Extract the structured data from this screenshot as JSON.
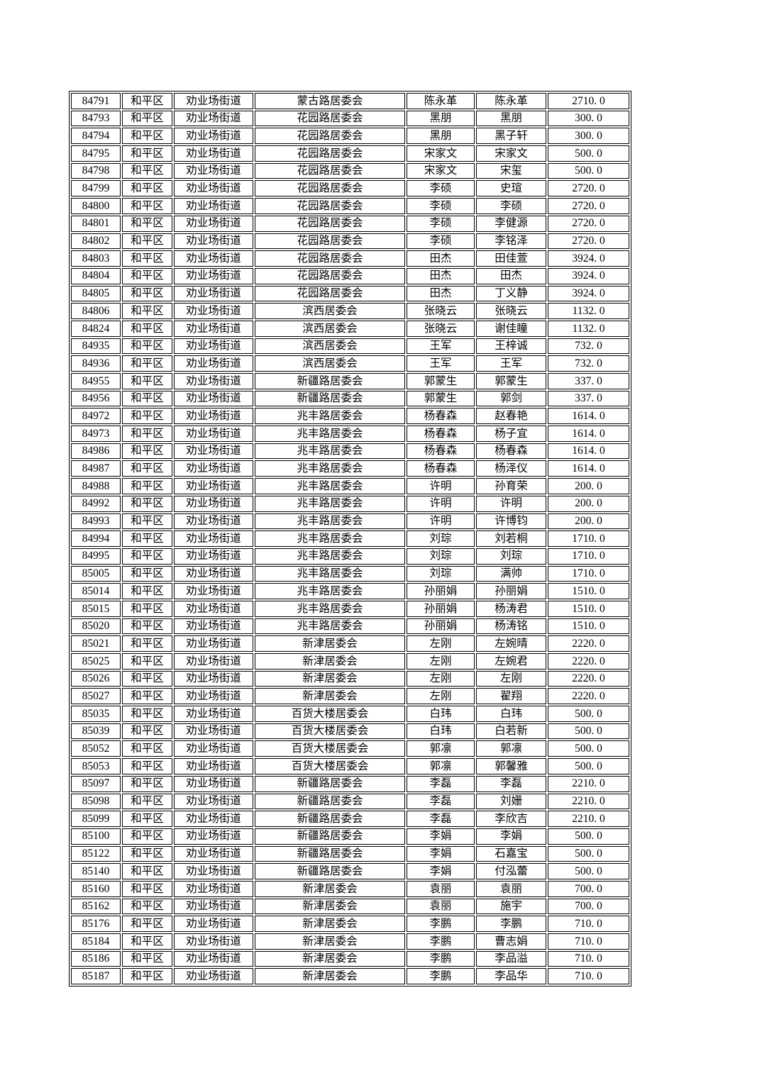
{
  "colors": {
    "background": "#ffffff",
    "table_border": "#000000",
    "text": "#000000"
  },
  "table": {
    "rows": [
      [
        "84791",
        "和平区",
        "劝业场街道",
        "蒙古路居委会",
        "陈永革",
        "陈永革",
        "2710. 0"
      ],
      [
        "84793",
        "和平区",
        "劝业场街道",
        "花园路居委会",
        "黑朋",
        "黑朋",
        "300. 0"
      ],
      [
        "84794",
        "和平区",
        "劝业场街道",
        "花园路居委会",
        "黑朋",
        "黑子轩",
        "300. 0"
      ],
      [
        "84795",
        "和平区",
        "劝业场街道",
        "花园路居委会",
        "宋家文",
        "宋家文",
        "500. 0"
      ],
      [
        "84798",
        "和平区",
        "劝业场街道",
        "花园路居委会",
        "宋家文",
        "宋玺",
        "500. 0"
      ],
      [
        "84799",
        "和平区",
        "劝业场街道",
        "花园路居委会",
        "李硕",
        "史瑄",
        "2720. 0"
      ],
      [
        "84800",
        "和平区",
        "劝业场街道",
        "花园路居委会",
        "李硕",
        "李硕",
        "2720. 0"
      ],
      [
        "84801",
        "和平区",
        "劝业场街道",
        "花园路居委会",
        "李硕",
        "李健源",
        "2720. 0"
      ],
      [
        "84802",
        "和平区",
        "劝业场街道",
        "花园路居委会",
        "李硕",
        "李铭泽",
        "2720. 0"
      ],
      [
        "84803",
        "和平区",
        "劝业场街道",
        "花园路居委会",
        "田杰",
        "田佳萱",
        "3924. 0"
      ],
      [
        "84804",
        "和平区",
        "劝业场街道",
        "花园路居委会",
        "田杰",
        "田杰",
        "3924. 0"
      ],
      [
        "84805",
        "和平区",
        "劝业场街道",
        "花园路居委会",
        "田杰",
        "丁义静",
        "3924. 0"
      ],
      [
        "84806",
        "和平区",
        "劝业场街道",
        "滨西居委会",
        "张晓云",
        "张晓云",
        "1132. 0"
      ],
      [
        "84824",
        "和平区",
        "劝业场街道",
        "滨西居委会",
        "张晓云",
        "谢佳瞳",
        "1132. 0"
      ],
      [
        "84935",
        "和平区",
        "劝业场街道",
        "滨西居委会",
        "王军",
        "王梓诚",
        "732. 0"
      ],
      [
        "84936",
        "和平区",
        "劝业场街道",
        "滨西居委会",
        "王军",
        "王军",
        "732. 0"
      ],
      [
        "84955",
        "和平区",
        "劝业场街道",
        "新疆路居委会",
        "郭蒙生",
        "郭蒙生",
        "337. 0"
      ],
      [
        "84956",
        "和平区",
        "劝业场街道",
        "新疆路居委会",
        "郭蒙生",
        "郭剑",
        "337. 0"
      ],
      [
        "84972",
        "和平区",
        "劝业场街道",
        "兆丰路居委会",
        "杨春森",
        "赵春艳",
        "1614. 0"
      ],
      [
        "84973",
        "和平区",
        "劝业场街道",
        "兆丰路居委会",
        "杨春森",
        "杨子宜",
        "1614. 0"
      ],
      [
        "84986",
        "和平区",
        "劝业场街道",
        "兆丰路居委会",
        "杨春森",
        "杨春森",
        "1614. 0"
      ],
      [
        "84987",
        "和平区",
        "劝业场街道",
        "兆丰路居委会",
        "杨春森",
        "杨泽仪",
        "1614. 0"
      ],
      [
        "84988",
        "和平区",
        "劝业场街道",
        "兆丰路居委会",
        "许明",
        "孙育荣",
        "200. 0"
      ],
      [
        "84992",
        "和平区",
        "劝业场街道",
        "兆丰路居委会",
        "许明",
        "许明",
        "200. 0"
      ],
      [
        "84993",
        "和平区",
        "劝业场街道",
        "兆丰路居委会",
        "许明",
        "许博钧",
        "200. 0"
      ],
      [
        "84994",
        "和平区",
        "劝业场街道",
        "兆丰路居委会",
        "刘琮",
        "刘若桐",
        "1710. 0"
      ],
      [
        "84995",
        "和平区",
        "劝业场街道",
        "兆丰路居委会",
        "刘琮",
        "刘琮",
        "1710. 0"
      ],
      [
        "85005",
        "和平区",
        "劝业场街道",
        "兆丰路居委会",
        "刘琮",
        "满帅",
        "1710. 0"
      ],
      [
        "85014",
        "和平区",
        "劝业场街道",
        "兆丰路居委会",
        "孙丽娟",
        "孙丽娟",
        "1510. 0"
      ],
      [
        "85015",
        "和平区",
        "劝业场街道",
        "兆丰路居委会",
        "孙丽娟",
        "杨涛君",
        "1510. 0"
      ],
      [
        "85020",
        "和平区",
        "劝业场街道",
        "兆丰路居委会",
        "孙丽娟",
        "杨涛铭",
        "1510. 0"
      ],
      [
        "85021",
        "和平区",
        "劝业场街道",
        "新津居委会",
        "左刚",
        "左婉晴",
        "2220. 0"
      ],
      [
        "85025",
        "和平区",
        "劝业场街道",
        "新津居委会",
        "左刚",
        "左婉君",
        "2220. 0"
      ],
      [
        "85026",
        "和平区",
        "劝业场街道",
        "新津居委会",
        "左刚",
        "左刚",
        "2220. 0"
      ],
      [
        "85027",
        "和平区",
        "劝业场街道",
        "新津居委会",
        "左刚",
        "翟翔",
        "2220. 0"
      ],
      [
        "85035",
        "和平区",
        "劝业场街道",
        "百货大楼居委会",
        "白玮",
        "白玮",
        "500. 0"
      ],
      [
        "85039",
        "和平区",
        "劝业场街道",
        "百货大楼居委会",
        "白玮",
        "白若新",
        "500. 0"
      ],
      [
        "85052",
        "和平区",
        "劝业场街道",
        "百货大楼居委会",
        "郭凛",
        "郭凛",
        "500. 0"
      ],
      [
        "85053",
        "和平区",
        "劝业场街道",
        "百货大楼居委会",
        "郭凛",
        "郭馨雅",
        "500. 0"
      ],
      [
        "85097",
        "和平区",
        "劝业场街道",
        "新疆路居委会",
        "李磊",
        "李磊",
        "2210. 0"
      ],
      [
        "85098",
        "和平区",
        "劝业场街道",
        "新疆路居委会",
        "李磊",
        "刘姗",
        "2210. 0"
      ],
      [
        "85099",
        "和平区",
        "劝业场街道",
        "新疆路居委会",
        "李磊",
        "李欣吉",
        "2210. 0"
      ],
      [
        "85100",
        "和平区",
        "劝业场街道",
        "新疆路居委会",
        "李娟",
        "李娟",
        "500. 0"
      ],
      [
        "85122",
        "和平区",
        "劝业场街道",
        "新疆路居委会",
        "李娟",
        "石嘉宝",
        "500. 0"
      ],
      [
        "85140",
        "和平区",
        "劝业场街道",
        "新疆路居委会",
        "李娟",
        "付泓蕾",
        "500. 0"
      ],
      [
        "85160",
        "和平区",
        "劝业场街道",
        "新津居委会",
        "袁丽",
        "袁丽",
        "700. 0"
      ],
      [
        "85162",
        "和平区",
        "劝业场街道",
        "新津居委会",
        "袁丽",
        "施宇",
        "700. 0"
      ],
      [
        "85176",
        "和平区",
        "劝业场街道",
        "新津居委会",
        "李鹏",
        "李鹏",
        "710. 0"
      ],
      [
        "85184",
        "和平区",
        "劝业场街道",
        "新津居委会",
        "李鹏",
        "曹志娟",
        "710. 0"
      ],
      [
        "85186",
        "和平区",
        "劝业场街道",
        "新津居委会",
        "李鹏",
        "李品溢",
        "710. 0"
      ],
      [
        "85187",
        "和平区",
        "劝业场街道",
        "新津居委会",
        "李鹏",
        "李品华",
        "710. 0"
      ]
    ]
  }
}
